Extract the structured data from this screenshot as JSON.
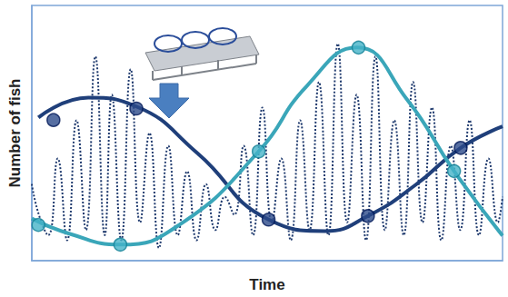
{
  "chart_data": {
    "type": "line",
    "x_label": "Time",
    "y_label": "Number of fish",
    "xlim": [
      0,
      100
    ],
    "ylim": [
      0,
      100
    ],
    "xticks": [],
    "yticks": [],
    "tick_labels": false,
    "grid": false,
    "series": [
      {
        "type": "line",
        "color": "#1f3a6e",
        "line_style": "dotted",
        "marker": "none",
        "x": [
          0,
          1.5,
          3.5,
          5.5,
          7.5,
          9.5,
          11.5,
          13.5,
          15.5,
          17,
          19,
          21,
          23,
          25,
          27,
          29,
          31,
          33,
          35,
          37,
          39,
          41,
          43,
          45,
          47,
          49,
          51,
          53,
          55,
          57,
          59,
          61,
          63,
          65,
          67,
          69,
          71,
          73,
          75,
          77,
          79,
          81,
          83,
          85,
          87,
          89,
          91,
          93,
          95,
          97,
          99,
          100
        ],
        "values": [
          30,
          18,
          10,
          40,
          8,
          55,
          12,
          80,
          10,
          65,
          8,
          75,
          15,
          50,
          5,
          45,
          10,
          35,
          8,
          30,
          12,
          25,
          18,
          45,
          10,
          60,
          15,
          40,
          8,
          55,
          12,
          70,
          10,
          85,
          15,
          65,
          8,
          80,
          12,
          55,
          10,
          70,
          15,
          60,
          8,
          45,
          12,
          55,
          10,
          40,
          15,
          25
        ]
      },
      {
        "type": "line",
        "color": "#1f3f7a",
        "line_style": "solid",
        "marker": "none",
        "x": [
          1.4,
          12.0,
          22.2,
          35.2,
          50.3,
          62.3,
          71.4,
          81.6,
          91.1,
          100
        ],
        "values": [
          56.1,
          63.9,
          60.4,
          42.1,
          16.1,
          11.6,
          17.5,
          29.8,
          44.2,
          52.6
        ]
      },
      {
        "type": "line",
        "color": "#3aa6b9",
        "line_style": "solid",
        "marker": "none",
        "x": [
          0,
          8.1,
          18.8,
          31.3,
          48.2,
          58.4,
          69.1,
          79.7,
          89.7,
          100
        ],
        "values": [
          16.5,
          10.5,
          6.3,
          14.0,
          42.8,
          68.4,
          83.5,
          63.2,
          35.1,
          9.8
        ]
      },
      {
        "type": "scatter",
        "color": "#2c4a8a",
        "marker": "circle",
        "x": [
          4.6,
          22.2,
          50.3,
          71.4,
          91.1
        ],
        "values": [
          55.1,
          59.6,
          16.1,
          17.5,
          44.2
        ]
      },
      {
        "type": "scatter",
        "color": "#45b3c8",
        "marker": "circle",
        "x": [
          1.4,
          18.8,
          48.2,
          69.4,
          89.7
        ],
        "values": [
          14.0,
          6.3,
          42.8,
          83.5,
          35.1
        ]
      }
    ]
  }
}
